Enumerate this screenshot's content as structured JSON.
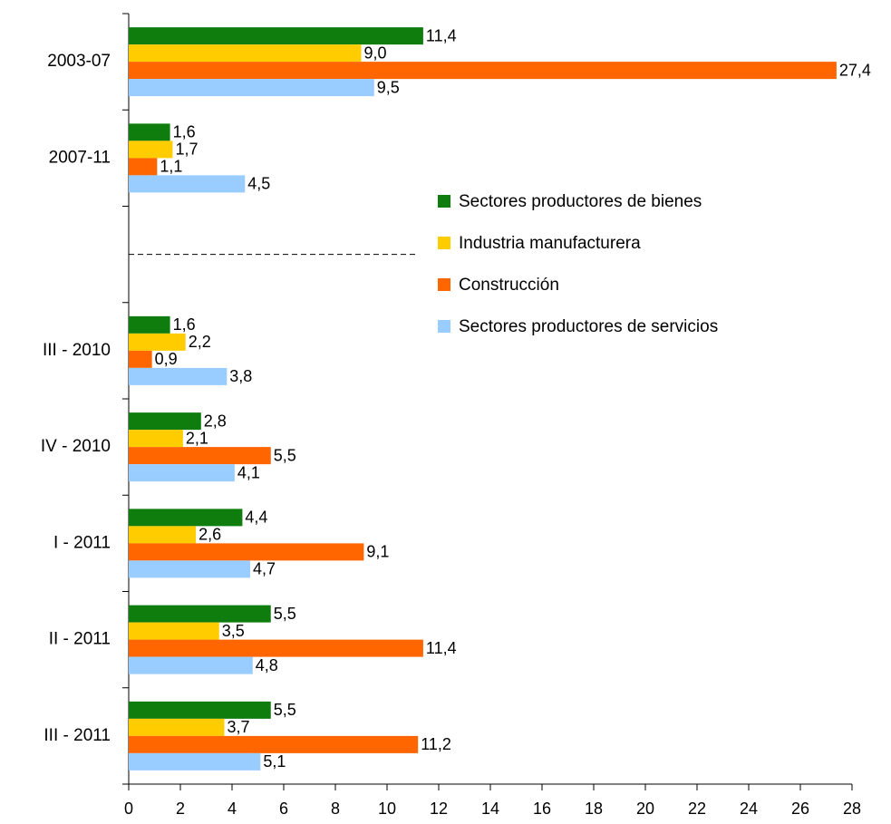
{
  "chart_data": {
    "type": "hbar",
    "categories": [
      "2003-07",
      "2007-11",
      null,
      "III - 2010",
      "IV - 2010",
      "I - 2011",
      "II - 2011",
      "III - 2011"
    ],
    "series": [
      {
        "name": "Sectores productores de bienes",
        "color": "#0e7d0e",
        "values": [
          11.4,
          1.6,
          null,
          1.6,
          2.8,
          4.4,
          5.5,
          5.5
        ],
        "value_labels": [
          "11,4",
          "1,6",
          null,
          "1,6",
          "2,8",
          "4,4",
          "5,5",
          "5,5"
        ]
      },
      {
        "name": "Industria manufacturera",
        "color": "#ffcc00",
        "values": [
          9.0,
          1.7,
          null,
          2.2,
          2.1,
          2.6,
          3.5,
          3.7
        ],
        "value_labels": [
          "9,0",
          "1,7",
          null,
          "2,2",
          "2,1",
          "2,6",
          "3,5",
          "3,7"
        ]
      },
      {
        "name": "Construcción",
        "color": "#ff6600",
        "values": [
          27.4,
          1.1,
          null,
          0.9,
          5.5,
          9.1,
          11.4,
          11.2
        ],
        "value_labels": [
          "27,4",
          "1,1",
          null,
          "0,9",
          "5,5",
          "9,1",
          "11,4",
          "11,2"
        ]
      },
      {
        "name": "Sectores productores de servicios",
        "color": "#99ccff",
        "values": [
          9.5,
          4.5,
          null,
          3.8,
          4.1,
          4.7,
          4.8,
          5.1
        ],
        "value_labels": [
          "9,5",
          "4,5",
          null,
          "3,8",
          "4,1",
          "4,7",
          "4,8",
          "5,1"
        ]
      }
    ],
    "xlim": [
      0,
      28
    ],
    "xticks": [
      0,
      2,
      4,
      6,
      8,
      10,
      12,
      14,
      16,
      18,
      20,
      22,
      24,
      26,
      28
    ]
  }
}
